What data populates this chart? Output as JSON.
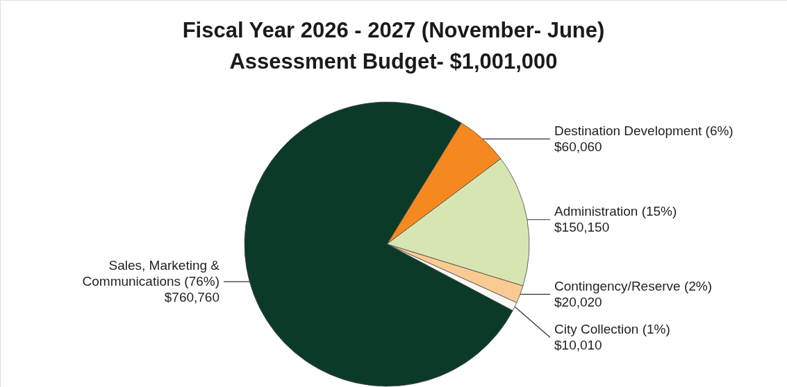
{
  "chart_data": {
    "type": "pie",
    "title": "Fiscal Year 2026 - 2027 (November- June)",
    "subtitle": "Assessment Budget- $1,001,000",
    "categories": [
      "Destination Development (6%)",
      "Administration (15%)",
      "Contingency/Reserve (2%)",
      "City Collection (1%)",
      "Sales, Marketing & Communications (76%)"
    ],
    "values": [
      60060,
      150150,
      20020,
      10010,
      760760
    ],
    "value_labels": [
      "$60,060",
      "$150,150",
      "$20,020",
      "$10,010",
      "$760,760"
    ],
    "colors": [
      "#f5891f",
      "#d7e5b2",
      "#f9cb93",
      "#f8f8f2",
      "#0c3a29"
    ]
  }
}
